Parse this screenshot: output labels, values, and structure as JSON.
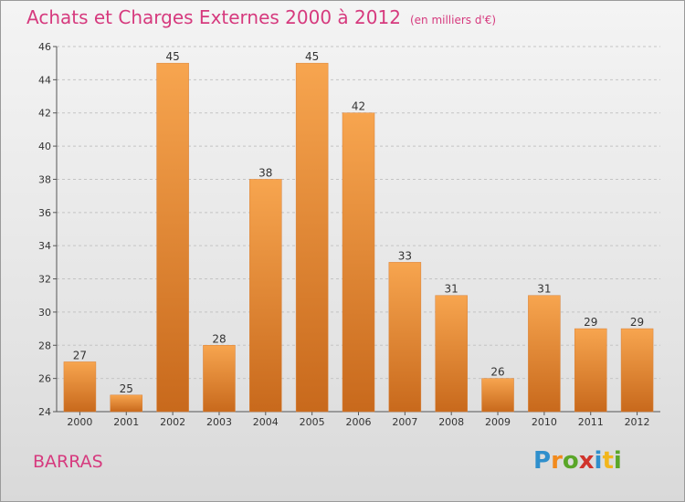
{
  "title": "Achats et Charges Externes 2000 à 2012",
  "subtitle": "(en milliers d'€)",
  "commune": "BARRAS",
  "logo": {
    "letters": [
      "P",
      "r",
      "o",
      "x",
      "i",
      "t",
      "i"
    ],
    "colors": [
      "#2f8fcc",
      "#f28a1c",
      "#5aa628",
      "#d0342c",
      "#2f8fcc",
      "#f2b61c",
      "#5aa628"
    ]
  },
  "colors": {
    "title": "#d63a7e",
    "bar_light": "#f7a54f",
    "bar_dark": "#c8691c"
  },
  "chart_data": {
    "type": "bar",
    "categories": [
      "2000",
      "2001",
      "2002",
      "2003",
      "2004",
      "2005",
      "2006",
      "2007",
      "2008",
      "2009",
      "2010",
      "2011",
      "2012"
    ],
    "values": [
      27,
      25,
      45,
      28,
      38,
      45,
      42,
      33,
      31,
      26,
      31,
      29,
      29
    ],
    "ylim": [
      24,
      46
    ],
    "yticks": [
      24,
      26,
      28,
      30,
      32,
      34,
      36,
      38,
      40,
      42,
      44,
      46
    ],
    "grid": "horizontal dashed",
    "xlabel": "",
    "ylabel": ""
  }
}
